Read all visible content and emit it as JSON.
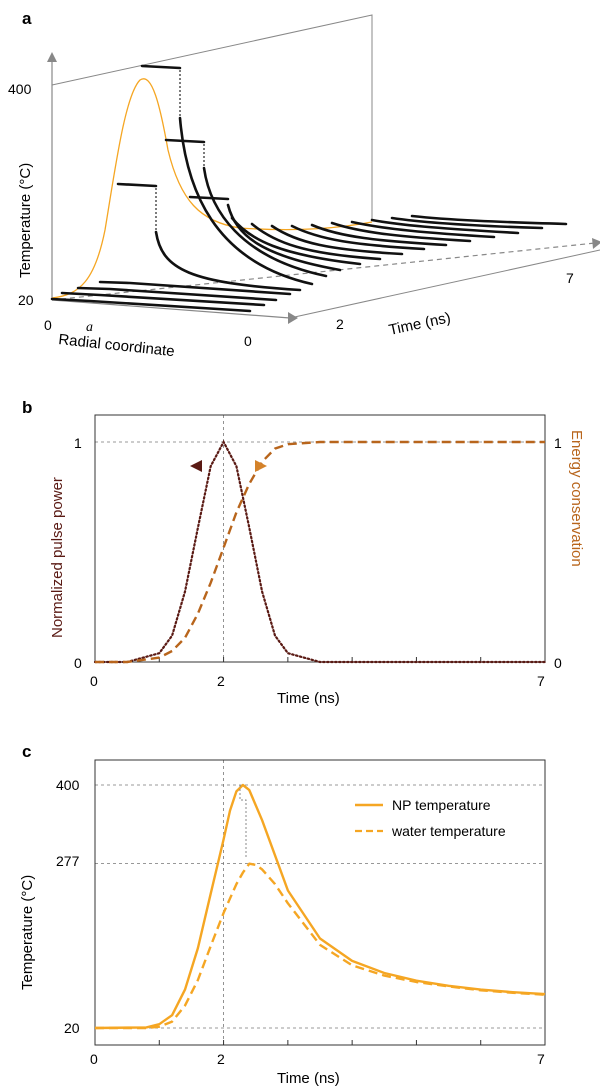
{
  "colors": {
    "np": "#f5a623",
    "water": "#f5a623",
    "pulse": "#5a1a14",
    "energy": "#b8651c",
    "axis": "#333333",
    "grid": "#777777",
    "curve3d": "#111111"
  },
  "chart_data": [
    {
      "panel": "a",
      "type": "line",
      "projection": "3d",
      "ylabel": "Temperature (°C)",
      "xlabel": "Radial coordinate",
      "tlabel": "Time (ns)",
      "y_ticks": [
        "400",
        "20"
      ],
      "x_ticks": [
        "0",
        "a",
        "0"
      ],
      "t_ticks": [
        "2",
        "7"
      ],
      "description_values": {
        "peak_np_temperature": 400,
        "ambient_temperature": 20
      }
    },
    {
      "panel": "b",
      "type": "line",
      "xlabel": "Time  (ns)",
      "ylabel_left": "Normalized pulse power",
      "ylabel_right": "Energy conservation",
      "x_ticks": [
        "0",
        "2",
        "7"
      ],
      "y_ticks_left": [
        "1",
        "0"
      ],
      "y_ticks_right": [
        "1",
        "0"
      ],
      "xlim": [
        0,
        7
      ],
      "ylim": [
        0,
        1
      ],
      "series": [
        {
          "style": "dotted",
          "axis": "left",
          "x": [
            0,
            0.5,
            1.0,
            1.2,
            1.4,
            1.6,
            1.8,
            2.0,
            2.2,
            2.4,
            2.6,
            2.8,
            3.0,
            3.5,
            7
          ],
          "y": [
            0,
            0.0,
            0.04,
            0.12,
            0.32,
            0.61,
            0.89,
            1.0,
            0.89,
            0.61,
            0.32,
            0.12,
            0.04,
            0.0,
            0
          ]
        },
        {
          "style": "dashed",
          "axis": "right",
          "x": [
            0,
            0.5,
            1.0,
            1.2,
            1.4,
            1.6,
            1.8,
            2.0,
            2.2,
            2.4,
            2.6,
            2.8,
            3.0,
            3.5,
            7
          ],
          "y": [
            0,
            0.0,
            0.02,
            0.05,
            0.11,
            0.22,
            0.36,
            0.52,
            0.68,
            0.81,
            0.91,
            0.97,
            0.99,
            1.0,
            1.0
          ]
        }
      ]
    },
    {
      "panel": "c",
      "type": "line",
      "xlabel": "Time  (ns)",
      "ylabel": "Temperature  (°C)",
      "x_ticks": [
        "0",
        "2",
        "7"
      ],
      "y_ticks": [
        "400",
        "277",
        "20"
      ],
      "xlim": [
        0,
        7
      ],
      "ylim": [
        20,
        400
      ],
      "legend_position": "top-right",
      "series": [
        {
          "name": "NP temperature",
          "style": "solid",
          "x": [
            0,
            0.8,
            1.0,
            1.2,
            1.4,
            1.6,
            1.8,
            2.0,
            2.1,
            2.2,
            2.3,
            2.4,
            2.6,
            2.8,
            3.0,
            3.5,
            4.0,
            4.5,
            5.0,
            5.5,
            6.0,
            6.5,
            7.0
          ],
          "y": [
            20,
            21,
            26,
            40,
            80,
            145,
            230,
            315,
            360,
            390,
            400,
            392,
            345,
            290,
            235,
            160,
            125,
            106,
            94,
            86,
            80,
            76,
            73
          ]
        },
        {
          "name": "water temperature",
          "style": "dashed",
          "x": [
            0,
            0.8,
            1.0,
            1.2,
            1.4,
            1.6,
            1.8,
            2.0,
            2.2,
            2.3,
            2.4,
            2.5,
            2.6,
            2.8,
            3.0,
            3.5,
            4.0,
            4.5,
            5.0,
            5.5,
            6.0,
            6.5,
            7.0
          ],
          "y": [
            20,
            20,
            22,
            30,
            55,
            95,
            148,
            200,
            245,
            263,
            277,
            275,
            268,
            245,
            215,
            150,
            118,
            102,
            92,
            85,
            79,
            75,
            72
          ]
        }
      ]
    }
  ]
}
